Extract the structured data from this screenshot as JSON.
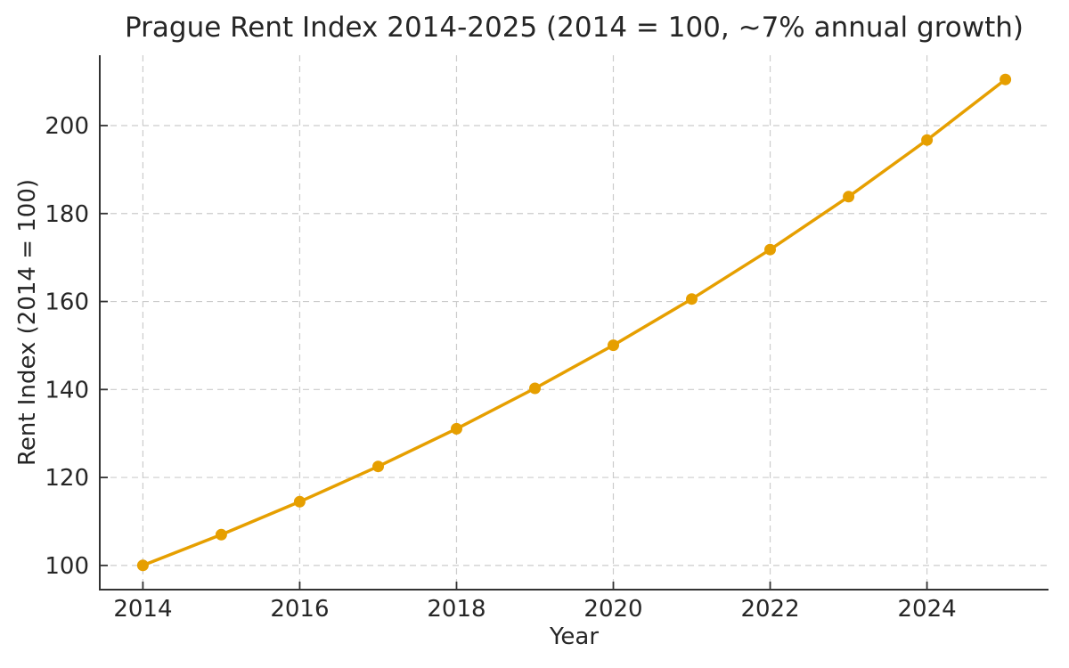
{
  "figure": {
    "background_color": "#ffffff"
  },
  "chart_data": {
    "type": "line",
    "title": "Prague Rent Index 2014-2025 (2014 = 100, ~7% annual growth)",
    "xlabel": "Year",
    "ylabel": "Rent Index (2014 = 100)",
    "x": [
      2014,
      2015,
      2016,
      2017,
      2018,
      2019,
      2020,
      2021,
      2022,
      2023,
      2024,
      2025
    ],
    "series": [
      {
        "name": "Prague Rent Index",
        "values": [
          100.0,
          107.0,
          114.49,
          122.5,
          131.08,
          140.26,
          150.07,
          160.58,
          171.82,
          183.85,
          196.72,
          210.49
        ],
        "color": "#E69F00",
        "marker": "circle"
      }
    ],
    "xlim": [
      2013.45,
      2025.55
    ],
    "ylim": [
      94.5,
      216.0
    ],
    "xticks": [
      2014,
      2016,
      2018,
      2020,
      2022,
      2024
    ],
    "yticks": [
      100,
      120,
      140,
      160,
      180,
      200
    ],
    "grid": true,
    "grid_linestyle": "dashed",
    "legend_position": "none"
  },
  "style": {
    "line_color": "#E69F00",
    "marker_color": "#E69F00",
    "grid_color": "#cccccc",
    "spine_color": "#333333",
    "tick_color": "#333333",
    "text_color": "#262626"
  }
}
